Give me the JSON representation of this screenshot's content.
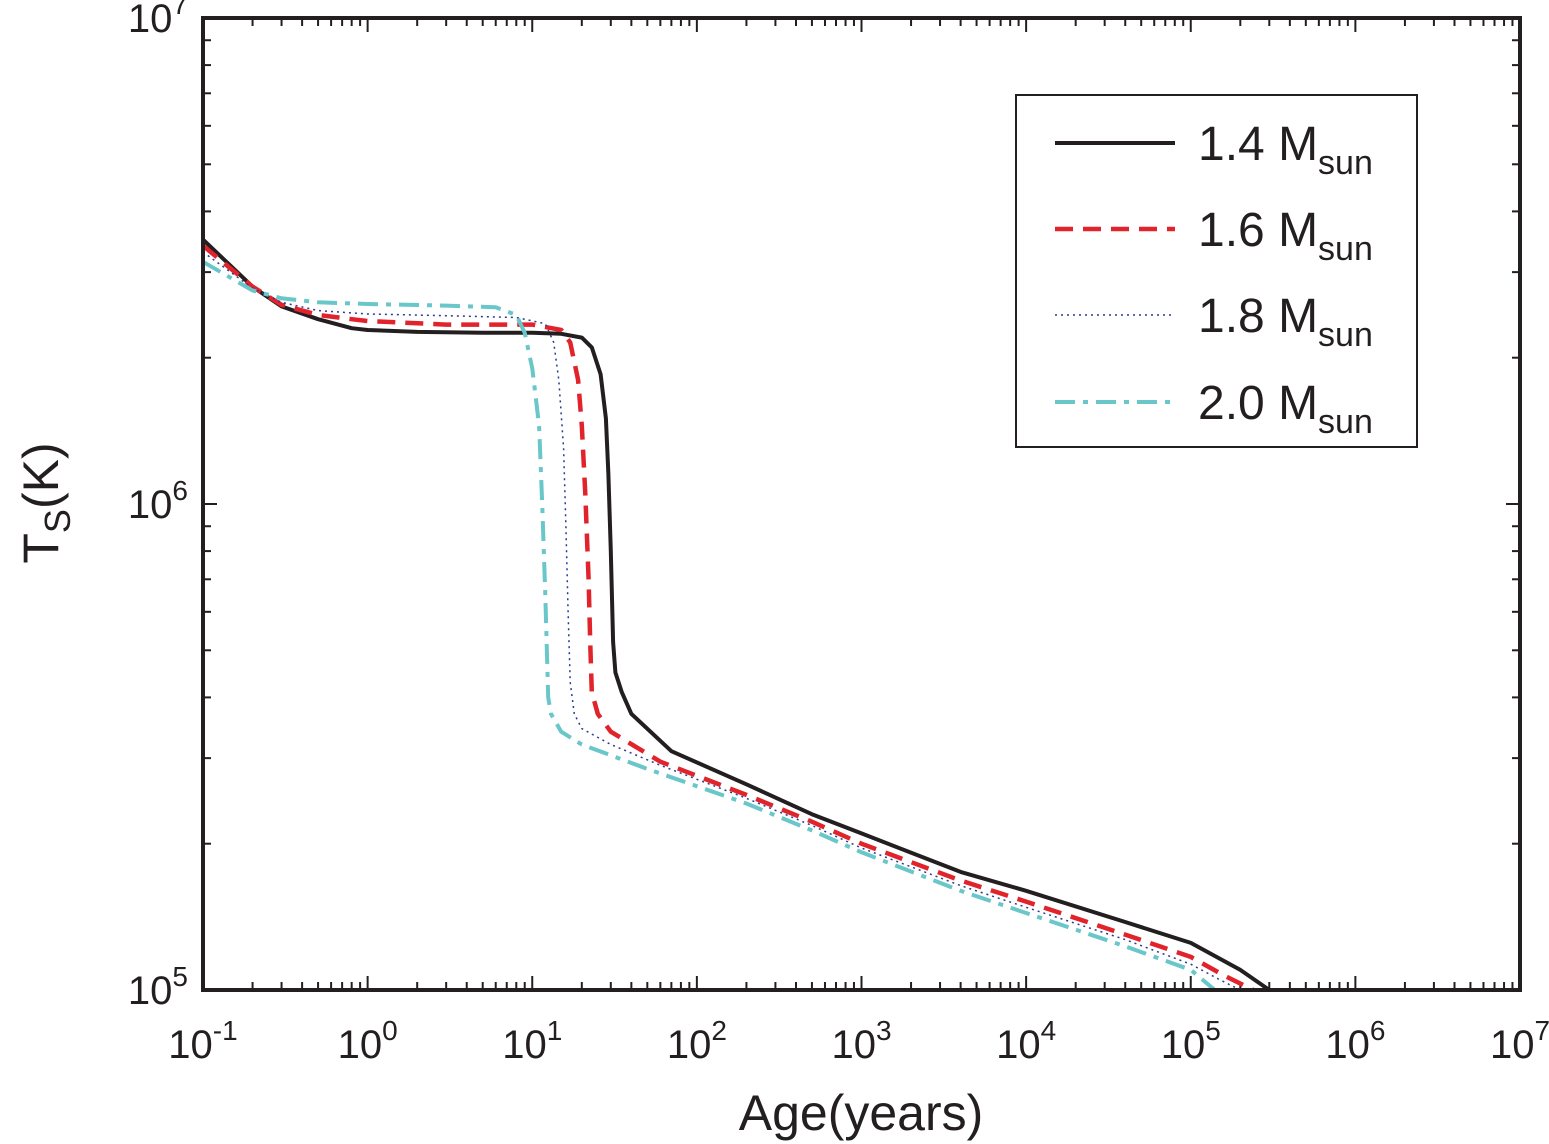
{
  "chart_data": {
    "type": "line",
    "xlabel": "Age(years)",
    "ylabel_main": "T",
    "ylabel_sub": "S",
    "ylabel_tail": "(K)",
    "x_scale": "log",
    "y_scale": "log",
    "xlim": [
      0.1,
      10000000
    ],
    "ylim": [
      100000,
      10000000
    ],
    "grid": false,
    "legend_position": "top-right",
    "x_ticks": [
      {
        "base": "10",
        "exp": "-1",
        "value": 0.1
      },
      {
        "base": "10",
        "exp": "0",
        "value": 1
      },
      {
        "base": "10",
        "exp": "1",
        "value": 10
      },
      {
        "base": "10",
        "exp": "2",
        "value": 100
      },
      {
        "base": "10",
        "exp": "3",
        "value": 1000
      },
      {
        "base": "10",
        "exp": "4",
        "value": 10000
      },
      {
        "base": "10",
        "exp": "5",
        "value": 100000
      },
      {
        "base": "10",
        "exp": "6",
        "value": 1000000
      },
      {
        "base": "10",
        "exp": "7",
        "value": 10000000
      }
    ],
    "y_ticks": [
      {
        "base": "10",
        "exp": "5",
        "value": 100000
      },
      {
        "base": "10",
        "exp": "6",
        "value": 1000000
      },
      {
        "base": "10",
        "exp": "7",
        "value": 10000000
      }
    ],
    "series": [
      {
        "name_main": "1.4 M",
        "name_sub": "sun",
        "color": "#231f20",
        "style": "solid",
        "points": [
          [
            0.1,
            3500000
          ],
          [
            0.2,
            2800000
          ],
          [
            0.3,
            2550000
          ],
          [
            0.5,
            2400000
          ],
          [
            0.8,
            2300000
          ],
          [
            1.0,
            2280000
          ],
          [
            2,
            2260000
          ],
          [
            5,
            2250000
          ],
          [
            10,
            2250000
          ],
          [
            15,
            2240000
          ],
          [
            20,
            2200000
          ],
          [
            23,
            2100000
          ],
          [
            26,
            1850000
          ],
          [
            28,
            1500000
          ],
          [
            29,
            1150000
          ],
          [
            30,
            800000
          ],
          [
            31,
            520000
          ],
          [
            32,
            450000
          ],
          [
            35,
            410000
          ],
          [
            40,
            370000
          ],
          [
            70,
            310000
          ],
          [
            200,
            265000
          ],
          [
            500,
            230000
          ],
          [
            1000,
            210000
          ],
          [
            4000,
            175000
          ],
          [
            10000,
            160000
          ],
          [
            40000,
            138000
          ],
          [
            100000,
            125000
          ],
          [
            200000,
            110000
          ],
          [
            300000,
            100000
          ]
        ]
      },
      {
        "name_main": "1.6 M",
        "name_sub": "sun",
        "color": "#e1232b",
        "style": "dashed",
        "points": [
          [
            0.1,
            3400000
          ],
          [
            0.2,
            2800000
          ],
          [
            0.3,
            2570000
          ],
          [
            0.5,
            2450000
          ],
          [
            0.8,
            2400000
          ],
          [
            1.0,
            2380000
          ],
          [
            3,
            2340000
          ],
          [
            10,
            2340000
          ],
          [
            15,
            2280000
          ],
          [
            17,
            2150000
          ],
          [
            19,
            1800000
          ],
          [
            20,
            1450000
          ],
          [
            21,
            1050000
          ],
          [
            22,
            700000
          ],
          [
            22.5,
            520000
          ],
          [
            23,
            410000
          ],
          [
            25,
            370000
          ],
          [
            30,
            340000
          ],
          [
            60,
            295000
          ],
          [
            200,
            252000
          ],
          [
            500,
            222000
          ],
          [
            1000,
            200000
          ],
          [
            4000,
            168000
          ],
          [
            10000,
            152000
          ],
          [
            40000,
            130000
          ],
          [
            100000,
            117000
          ],
          [
            160000,
            107000
          ],
          [
            240000,
            100000
          ]
        ]
      },
      {
        "name_main": "1.8 M",
        "name_sub": "sun",
        "color": "#2b3a8f",
        "style": "dotted",
        "points": [
          [
            0.1,
            3300000
          ],
          [
            0.2,
            2780000
          ],
          [
            0.3,
            2600000
          ],
          [
            0.5,
            2500000
          ],
          [
            1,
            2460000
          ],
          [
            3,
            2440000
          ],
          [
            8,
            2420000
          ],
          [
            12,
            2350000
          ],
          [
            13.5,
            2150000
          ],
          [
            14.5,
            1800000
          ],
          [
            15.5,
            1300000
          ],
          [
            16,
            900000
          ],
          [
            16.5,
            600000
          ],
          [
            17,
            430000
          ],
          [
            18,
            370000
          ],
          [
            20,
            345000
          ],
          [
            30,
            320000
          ],
          [
            60,
            290000
          ],
          [
            200,
            248000
          ],
          [
            500,
            218000
          ],
          [
            1000,
            196000
          ],
          [
            4000,
            164000
          ],
          [
            10000,
            148000
          ],
          [
            40000,
            127000
          ],
          [
            100000,
            113000
          ],
          [
            150000,
            105000
          ],
          [
            200000,
            100000
          ]
        ]
      },
      {
        "name_main": "2.0 M",
        "name_sub": "sun",
        "color": "#69c6c9",
        "style": "dashdot",
        "points": [
          [
            0.1,
            3150000
          ],
          [
            0.2,
            2750000
          ],
          [
            0.3,
            2650000
          ],
          [
            0.5,
            2600000
          ],
          [
            1,
            2580000
          ],
          [
            3,
            2560000
          ],
          [
            6,
            2540000
          ],
          [
            8,
            2450000
          ],
          [
            9,
            2250000
          ],
          [
            10,
            1900000
          ],
          [
            11,
            1450000
          ],
          [
            11.5,
            1000000
          ],
          [
            12,
            650000
          ],
          [
            12.3,
            480000
          ],
          [
            12.5,
            400000
          ],
          [
            13,
            370000
          ],
          [
            15,
            340000
          ],
          [
            20,
            320000
          ],
          [
            50,
            285000
          ],
          [
            200,
            242000
          ],
          [
            500,
            213000
          ],
          [
            1000,
            192000
          ],
          [
            4000,
            160000
          ],
          [
            10000,
            144000
          ],
          [
            40000,
            123000
          ],
          [
            100000,
            110000
          ],
          [
            140000,
            100000
          ]
        ]
      }
    ]
  }
}
